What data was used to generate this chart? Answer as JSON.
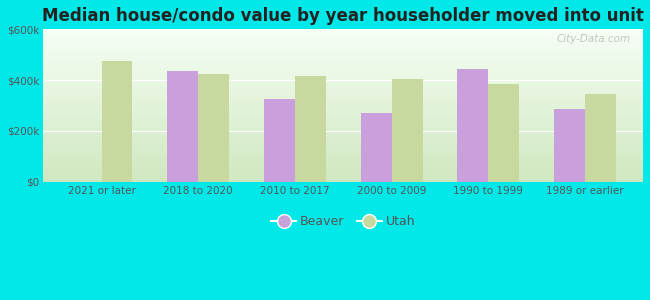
{
  "title": "Median house/condo value by year householder moved into unit",
  "categories": [
    "2021 or later",
    "2018 to 2020",
    "2010 to 2017",
    "2000 to 2009",
    "1990 to 1999",
    "1989 or earlier"
  ],
  "beaver_values": [
    0,
    435000,
    325000,
    270000,
    445000,
    285000
  ],
  "utah_values": [
    475000,
    425000,
    415000,
    405000,
    385000,
    345000
  ],
  "beaver_color": "#c9a0dc",
  "utah_color": "#c8d9a0",
  "background_outer": "#00e8e8",
  "background_inner_top": "#f5fff5",
  "background_inner_bottom": "#d0e8c0",
  "ylim": [
    0,
    600000
  ],
  "yticks": [
    0,
    200000,
    400000,
    600000
  ],
  "ytick_labels": [
    "$0",
    "$200k",
    "$400k",
    "$600k"
  ],
  "legend_labels": [
    "Beaver",
    "Utah"
  ],
  "watermark": "City-Data.com"
}
